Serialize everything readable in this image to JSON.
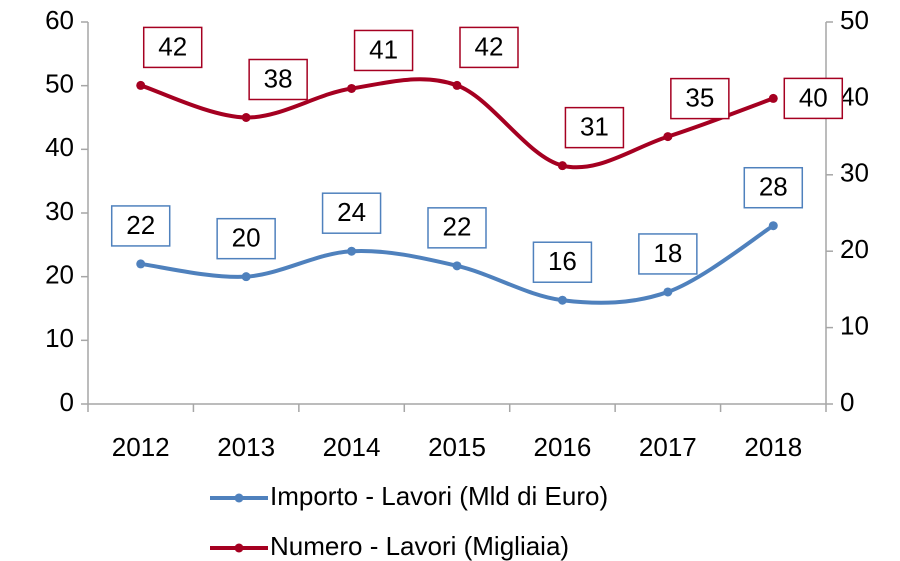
{
  "chart_data": {
    "type": "line",
    "categories": [
      "2012",
      "2013",
      "2014",
      "2015",
      "2016",
      "2017",
      "2018"
    ],
    "series": [
      {
        "name": "Importo - Lavori (Mld di Euro)",
        "color": "#4f81bd",
        "axis": "y",
        "values": [
          22,
          20,
          24,
          21.7,
          16.3,
          17.6,
          28
        ],
        "value_labels": [
          "22",
          "20",
          "24",
          "22",
          "16",
          "18",
          "28"
        ]
      },
      {
        "name": "Numero - Lavori (Migliaia)",
        "color": "#a50021",
        "axis": "y2",
        "values": [
          41.7,
          37.5,
          41.3,
          41.7,
          31.2,
          35,
          40
        ],
        "value_labels": [
          "42",
          "38",
          "41",
          "42",
          "31",
          "35",
          "40"
        ]
      }
    ],
    "ylim": [
      0,
      60
    ],
    "yticks": [
      0,
      10,
      20,
      30,
      40,
      50,
      60
    ],
    "y2lim": [
      0,
      50
    ],
    "y2ticks": [
      0,
      10,
      20,
      30,
      40,
      50
    ],
    "smooth": true,
    "grid": false,
    "legend": "bottom"
  }
}
